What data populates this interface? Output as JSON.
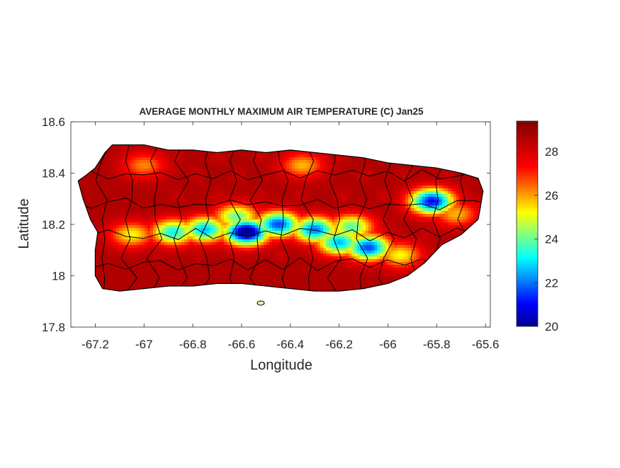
{
  "figure": {
    "title": "AVERAGE MONTHLY MAXIMUM AIR TEMPERATURE (C) Jan25",
    "xlabel": "Longitude",
    "ylabel": "Latitude"
  },
  "chart_data": {
    "type": "heatmap",
    "title": "AVERAGE MONTHLY MAXIMUM AIR TEMPERATURE (C) Jan25",
    "xlabel": "Longitude",
    "ylabel": "Latitude",
    "xlim": [
      -67.3,
      -65.58
    ],
    "ylim": [
      17.8,
      18.6
    ],
    "x_ticks": [
      -67.2,
      -67,
      -66.8,
      -66.6,
      -66.4,
      -66.2,
      -66,
      -65.8,
      -65.6
    ],
    "x_tick_labels": [
      "-67.2",
      "-67",
      "-66.8",
      "-66.6",
      "-66.4",
      "-66.2",
      "-66",
      "-65.8",
      "-65.6"
    ],
    "y_ticks": [
      17.8,
      18,
      18.2,
      18.4,
      18.6
    ],
    "y_tick_labels": [
      "17.8",
      "18",
      "18.2",
      "18.4",
      "18.6"
    ],
    "grid": false,
    "colormap": "jet",
    "colors": [
      "#00008f",
      "#0000ff",
      "#00ffff",
      "#ffff00",
      "#ff0000",
      "#800000"
    ],
    "colorbar": {
      "location": "right",
      "range": [
        20,
        29.4
      ],
      "ticks": [
        20,
        22,
        24,
        26,
        28
      ],
      "tick_labels": [
        "20",
        "22",
        "24",
        "26",
        "28"
      ]
    },
    "coastline": [
      [
        -67.27,
        18.37
      ],
      [
        -67.24,
        18.39
      ],
      [
        -67.2,
        18.42
      ],
      [
        -67.16,
        18.48
      ],
      [
        -67.13,
        18.51
      ],
      [
        -67.0,
        18.51
      ],
      [
        -66.9,
        18.49
      ],
      [
        -66.8,
        18.49
      ],
      [
        -66.7,
        18.48
      ],
      [
        -66.6,
        18.49
      ],
      [
        -66.5,
        18.48
      ],
      [
        -66.4,
        18.49
      ],
      [
        -66.3,
        18.48
      ],
      [
        -66.2,
        18.47
      ],
      [
        -66.1,
        18.46
      ],
      [
        -66.0,
        18.44
      ],
      [
        -65.9,
        18.43
      ],
      [
        -65.8,
        18.42
      ],
      [
        -65.7,
        18.4
      ],
      [
        -65.63,
        18.38
      ],
      [
        -65.61,
        18.33
      ],
      [
        -65.62,
        18.27
      ],
      [
        -65.63,
        18.22
      ],
      [
        -65.7,
        18.16
      ],
      [
        -65.78,
        18.12
      ],
      [
        -65.85,
        18.05
      ],
      [
        -65.92,
        18.0
      ],
      [
        -66.0,
        17.97
      ],
      [
        -66.1,
        17.95
      ],
      [
        -66.2,
        17.94
      ],
      [
        -66.3,
        17.94
      ],
      [
        -66.4,
        17.95
      ],
      [
        -66.5,
        17.96
      ],
      [
        -66.6,
        17.97
      ],
      [
        -66.7,
        17.97
      ],
      [
        -66.8,
        17.96
      ],
      [
        -66.9,
        17.96
      ],
      [
        -67.0,
        17.95
      ],
      [
        -67.1,
        17.94
      ],
      [
        -67.17,
        17.95
      ],
      [
        -67.2,
        18.0
      ],
      [
        -67.2,
        18.1
      ],
      [
        -67.19,
        18.17
      ],
      [
        -67.22,
        18.22
      ],
      [
        -67.25,
        18.3
      ],
      [
        -67.27,
        18.37
      ]
    ],
    "cold_spots": [
      [
        -66.58,
        18.17,
        19.6
      ],
      [
        -66.45,
        18.2,
        21.6
      ],
      [
        -66.75,
        18.18,
        22.6
      ],
      [
        -66.88,
        18.17,
        23.2
      ],
      [
        -66.3,
        18.18,
        22.0
      ],
      [
        -66.2,
        18.13,
        22.6
      ],
      [
        -66.08,
        18.11,
        21.6
      ],
      [
        -65.82,
        18.29,
        21.0
      ],
      [
        -66.15,
        18.19,
        23.8
      ],
      [
        -66.62,
        18.23,
        24.0
      ],
      [
        -67.05,
        18.16,
        25.2
      ],
      [
        -65.95,
        18.08,
        25.2
      ],
      [
        -65.72,
        18.24,
        25.8
      ],
      [
        -66.35,
        18.43,
        25.8
      ],
      [
        -67.0,
        18.43,
        26.2
      ]
    ]
  }
}
